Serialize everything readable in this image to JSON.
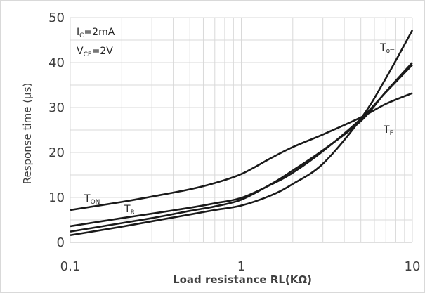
{
  "chart_data": {
    "type": "line",
    "xlabel": "Load resistance RL(KΩ)",
    "ylabel": "Response time (μs)",
    "xscale": "log",
    "xlim": [
      0.1,
      10
    ],
    "ylim": [
      0,
      50
    ],
    "xticks": [
      "0.1",
      "1",
      "10"
    ],
    "yticks": [
      "0",
      "10",
      "20",
      "30",
      "40",
      "50"
    ],
    "grid": true,
    "conditions": [
      {
        "main": "I",
        "sub": "C",
        "rest": "=2mA"
      },
      {
        "main": "V",
        "sub": "CE",
        "rest": "=2V"
      }
    ],
    "series": [
      {
        "name": "T_ON",
        "label_main": "T",
        "label_sub": "ON",
        "x": [
          0.1,
          0.2,
          0.3,
          0.5,
          0.7,
          1,
          1.5,
          2,
          3,
          5,
          7,
          10
        ],
        "y": [
          7.2,
          9.0,
          10.2,
          11.8,
          13.2,
          15.2,
          18.8,
          21.2,
          24.0,
          27.8,
          30.8,
          33.2
        ]
      },
      {
        "name": "T_R",
        "label_main": "T",
        "label_sub": "R",
        "x": [
          0.1,
          0.2,
          0.3,
          0.5,
          0.7,
          1,
          1.5,
          2,
          3,
          5,
          7,
          10
        ],
        "y": [
          3.6,
          5.4,
          6.4,
          7.7,
          8.7,
          9.9,
          12.9,
          15.5,
          20.3,
          27.5,
          33.4,
          39.5
        ]
      },
      {
        "name": "T_F",
        "label_main": "T",
        "label_sub": "F",
        "x": [
          0.1,
          0.2,
          0.3,
          0.5,
          0.7,
          1,
          1.5,
          2,
          3,
          5,
          7,
          10
        ],
        "y": [
          2.4,
          4.3,
          5.4,
          7.0,
          8.0,
          9.5,
          13.0,
          16.0,
          20.5,
          27.0,
          33.5,
          40.0
        ]
      },
      {
        "name": "T_off",
        "label_main": "T",
        "label_sub": "off",
        "x": [
          0.1,
          0.2,
          0.3,
          0.5,
          0.7,
          1,
          1.5,
          2,
          3,
          5,
          7,
          10
        ],
        "y": [
          1.6,
          3.5,
          4.7,
          6.2,
          7.2,
          8.2,
          10.5,
          13.0,
          17.5,
          27.5,
          36.5,
          47.2
        ]
      }
    ]
  }
}
